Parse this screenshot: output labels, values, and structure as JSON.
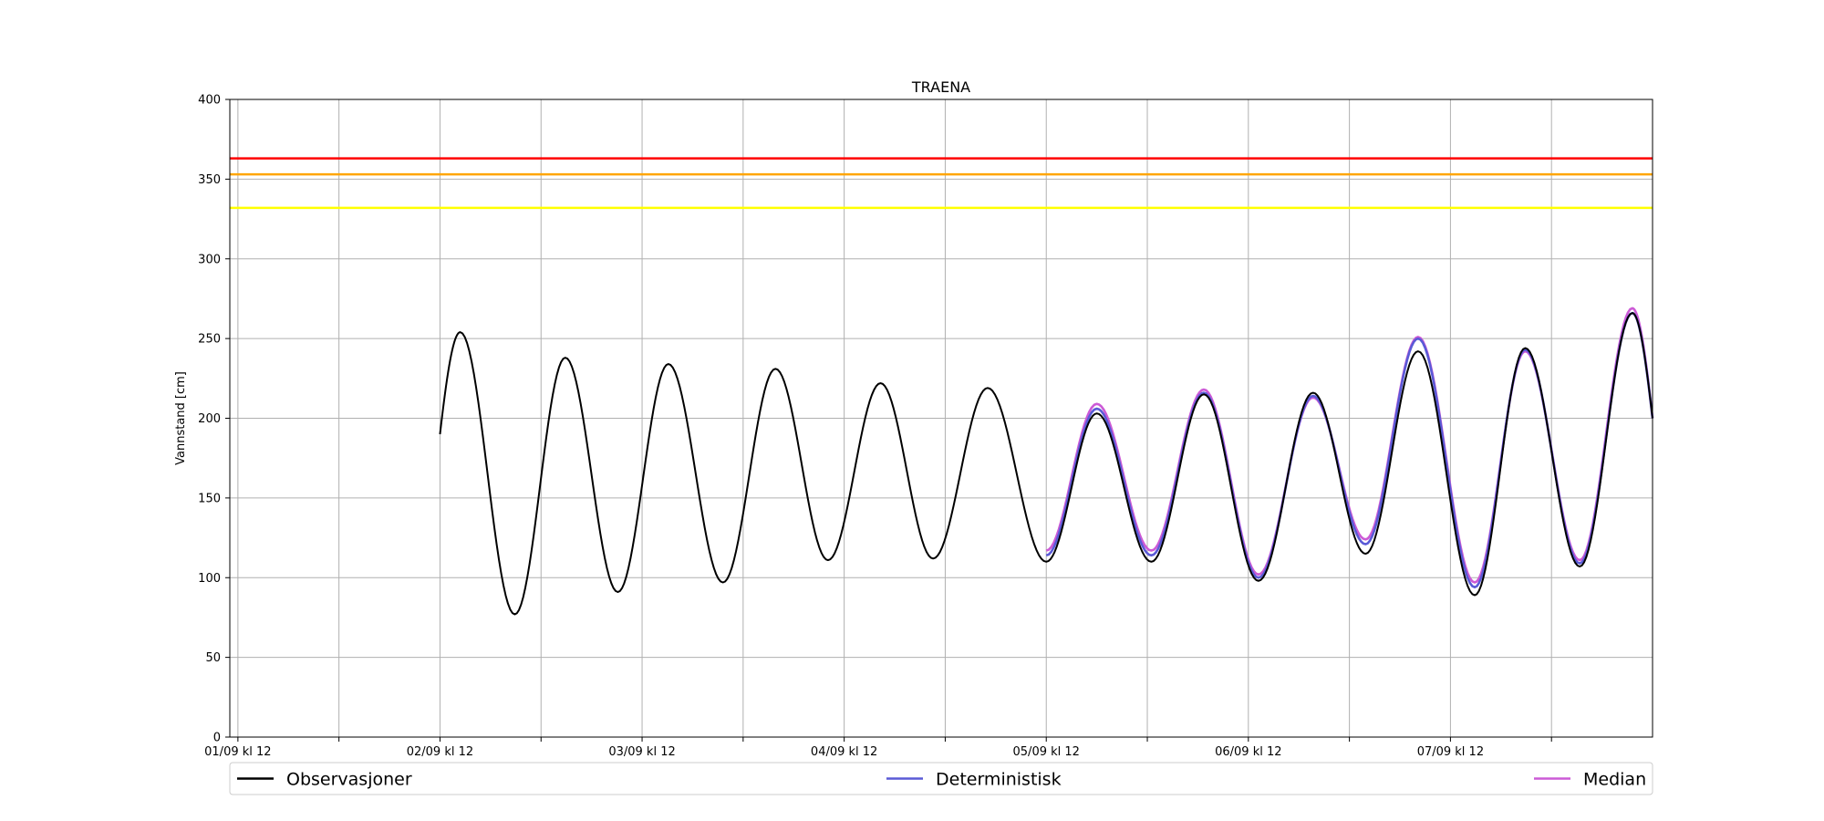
{
  "chart_data": {
    "type": "line",
    "title": "TRAENA",
    "xlabel": "",
    "ylabel": "Vannstand [cm]",
    "ylim": [
      0,
      400
    ],
    "yticks": [
      0,
      50,
      100,
      150,
      200,
      250,
      300,
      350,
      400
    ],
    "xlim_days": [
      -0.04,
      7.0
    ],
    "x_ticks": [
      {
        "label": "01/09 kl 12",
        "major": true
      },
      {
        "label": "",
        "major": false
      },
      {
        "label": "02/09 kl 12",
        "major": true
      },
      {
        "label": "",
        "major": false
      },
      {
        "label": "03/09 kl 12",
        "major": true
      },
      {
        "label": "",
        "major": false
      },
      {
        "label": "04/09 kl 12",
        "major": true
      },
      {
        "label": "",
        "major": false
      },
      {
        "label": "05/09 kl 12",
        "major": true
      },
      {
        "label": "",
        "major": false
      },
      {
        "label": "06/09 kl 12",
        "major": true
      },
      {
        "label": "",
        "major": false
      },
      {
        "label": "07/09 kl 12",
        "major": true
      },
      {
        "label": "",
        "major": false
      }
    ],
    "grid": true,
    "legend_position": "bottom",
    "thresholds": [
      {
        "value": 363,
        "color": "#ff0000"
      },
      {
        "value": 353,
        "color": "#ffa500"
      },
      {
        "value": 332,
        "color": "#ffff00"
      }
    ],
    "series": [
      {
        "name": "Observasjoner",
        "color": "#000000",
        "start_day": 1.0,
        "end_day": 7.0,
        "start_value": 190,
        "end_value": 200,
        "extrema": [
          [
            1.1,
            254
          ],
          [
            1.37,
            77
          ],
          [
            1.62,
            238
          ],
          [
            1.88,
            91
          ],
          [
            2.13,
            234
          ],
          [
            2.4,
            97
          ],
          [
            2.66,
            231
          ],
          [
            2.92,
            111
          ],
          [
            3.18,
            222
          ],
          [
            3.44,
            112
          ],
          [
            3.71,
            219
          ],
          [
            4.0,
            110
          ],
          [
            4.25,
            203
          ],
          [
            4.52,
            110
          ],
          [
            4.78,
            215
          ],
          [
            5.05,
            98
          ],
          [
            5.32,
            216
          ],
          [
            5.58,
            115
          ],
          [
            5.84,
            242
          ],
          [
            6.12,
            89
          ],
          [
            6.37,
            244
          ],
          [
            6.64,
            107
          ],
          [
            6.9,
            266
          ]
        ]
      },
      {
        "name": "Deterministisk",
        "color": "#5a5ad6",
        "start_day": 4.0,
        "end_day": 7.0,
        "start_value": 112,
        "end_value": 200,
        "extrema": [
          [
            4.25,
            206
          ],
          [
            4.52,
            114
          ],
          [
            4.78,
            216
          ],
          [
            5.05,
            100
          ],
          [
            5.32,
            214
          ],
          [
            5.58,
            121
          ],
          [
            5.84,
            250
          ],
          [
            6.12,
            94
          ],
          [
            6.37,
            243
          ],
          [
            6.64,
            109
          ],
          [
            6.9,
            266
          ]
        ]
      },
      {
        "name": "Median",
        "color": "#cc5ad6",
        "start_day": 4.0,
        "end_day": 7.0,
        "start_value": 114,
        "end_value": 200,
        "extrema": [
          [
            4.25,
            209
          ],
          [
            4.52,
            117
          ],
          [
            4.78,
            218
          ],
          [
            5.05,
            102
          ],
          [
            5.32,
            213
          ],
          [
            5.58,
            124
          ],
          [
            5.84,
            251
          ],
          [
            6.12,
            97
          ],
          [
            6.37,
            242
          ],
          [
            6.64,
            111
          ],
          [
            6.9,
            269
          ]
        ]
      }
    ]
  }
}
